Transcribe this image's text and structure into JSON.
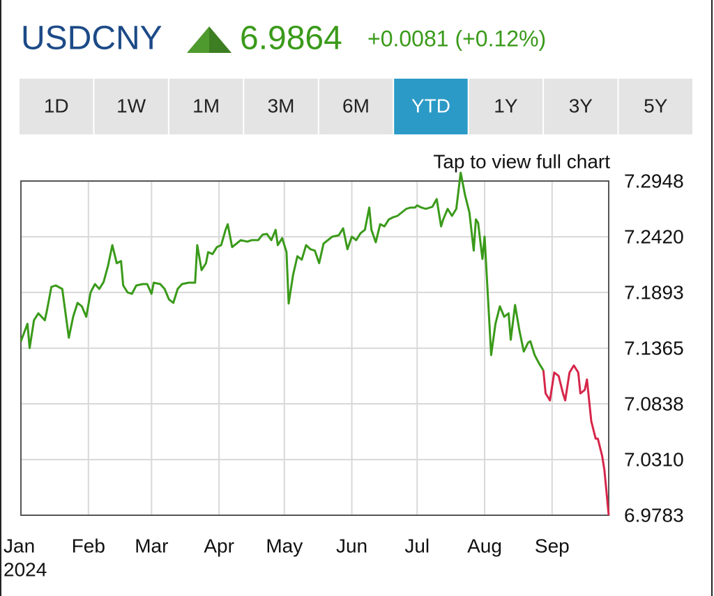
{
  "header": {
    "symbol": "USDCNY",
    "price": "6.9864",
    "change": "+0.0081 (+0.12%)"
  },
  "tabs": {
    "items": [
      "1D",
      "1W",
      "1M",
      "3M",
      "6M",
      "YTD",
      "1Y",
      "3Y",
      "5Y"
    ],
    "active": 5
  },
  "chart_data": {
    "type": "line",
    "note": "Tap to view full chart",
    "x": [
      0,
      3,
      4,
      6,
      8,
      11,
      12,
      14,
      16,
      19,
      22,
      24,
      26,
      28,
      30,
      32,
      34,
      36,
      38,
      40,
      42,
      44,
      46,
      47,
      49,
      51,
      53,
      56,
      58,
      60,
      61,
      64,
      66,
      68,
      70,
      72,
      74,
      77,
      80,
      81,
      83,
      85,
      86,
      88,
      90,
      92,
      94,
      95,
      97,
      99,
      101,
      104,
      106,
      109,
      111,
      113,
      115,
      117,
      118,
      120,
      122,
      123,
      125,
      127,
      129,
      131,
      133,
      135,
      137,
      139,
      141,
      143,
      146,
      148,
      150,
      152,
      154,
      156,
      158,
      160,
      161,
      163,
      165,
      167,
      169,
      171,
      173,
      175,
      177,
      179,
      181,
      182,
      184,
      186,
      189,
      191,
      193,
      194,
      196,
      198,
      200,
      202,
      204,
      206,
      208,
      209,
      210,
      212,
      213,
      216,
      218,
      220,
      222,
      224,
      225,
      227,
      229,
      231,
      233,
      234,
      236,
      238,
      240,
      241,
      243,
      245,
      247,
      249,
      250,
      252,
      254,
      256,
      257,
      259,
      260,
      262,
      264,
      265,
      267,
      268,
      270
    ],
    "series": [
      {
        "color": "#3a9a1a",
        "values": [
          7.1431,
          7.1596,
          7.1366,
          7.1629,
          7.1695,
          7.1629,
          7.1728,
          7.1946,
          7.1959,
          7.1926,
          7.1464,
          7.1662,
          7.1794,
          7.1761,
          7.1662,
          7.1893,
          7.1972,
          7.1926,
          7.1992,
          7.2144,
          7.2341,
          7.217,
          7.219,
          7.1959,
          7.1893,
          7.188,
          7.1959,
          7.1972,
          7.1972,
          7.188,
          7.1985,
          7.1972,
          7.1926,
          7.1827,
          7.1794,
          7.1926,
          7.1972,
          7.1985,
          7.1985,
          7.2341,
          7.2104,
          7.217,
          7.2275,
          7.2256,
          7.2322,
          7.2341,
          7.2486,
          7.2539,
          7.2322,
          7.2355,
          7.2388,
          7.2374,
          7.2388,
          7.2388,
          7.244,
          7.2447,
          7.2388,
          7.2486,
          7.2341,
          7.2407,
          7.2275,
          7.1788,
          7.2058,
          7.2236,
          7.2203,
          7.2341,
          7.2302,
          7.2289,
          7.217,
          7.2355,
          7.2388,
          7.2421,
          7.2434,
          7.25,
          7.2302,
          7.2421,
          7.2388,
          7.2454,
          7.2486,
          7.2697,
          7.2486,
          7.2368,
          7.2539,
          7.2519,
          7.2585,
          7.2605,
          7.2618,
          7.2651,
          7.2684,
          7.2697,
          7.2697,
          7.2717,
          7.2697,
          7.2684,
          7.2704,
          7.2777,
          7.2519,
          7.2585,
          7.2684,
          7.2618,
          7.2684,
          7.3027,
          7.2816,
          7.2651,
          7.2289,
          7.2585,
          7.2552,
          7.221,
          7.2421,
          7.13,
          7.1596,
          7.1761,
          7.1662,
          7.1695,
          7.1445,
          7.1774,
          7.153,
          7.1333,
          7.1418,
          7.1431,
          7.13,
          7.1221,
          7.1155,
          null,
          null,
          null,
          null,
          null,
          null,
          null,
          null,
          null,
          null,
          null,
          null,
          null,
          null,
          null,
          null,
          null,
          null
        ]
      },
      {
        "color": "#d6264a",
        "values": [
          null,
          null,
          null,
          null,
          null,
          null,
          null,
          null,
          null,
          null,
          null,
          null,
          null,
          null,
          null,
          null,
          null,
          null,
          null,
          null,
          null,
          null,
          null,
          null,
          null,
          null,
          null,
          null,
          null,
          null,
          null,
          null,
          null,
          null,
          null,
          null,
          null,
          null,
          null,
          null,
          null,
          null,
          null,
          null,
          null,
          null,
          null,
          null,
          null,
          null,
          null,
          null,
          null,
          null,
          null,
          null,
          null,
          null,
          null,
          null,
          null,
          null,
          null,
          null,
          null,
          null,
          null,
          null,
          null,
          null,
          null,
          null,
          null,
          null,
          null,
          null,
          null,
          null,
          null,
          null,
          null,
          null,
          null,
          null,
          null,
          null,
          null,
          null,
          null,
          null,
          null,
          null,
          null,
          null,
          null,
          null,
          null,
          null,
          null,
          null,
          null,
          null,
          null,
          null,
          null,
          null,
          null,
          null,
          null,
          null,
          null,
          null,
          null,
          null,
          null,
          null,
          null,
          null,
          null,
          null,
          null,
          null,
          7.1155,
          7.0937,
          7.0871,
          7.1135,
          7.1102,
          7.0937,
          7.0871,
          7.1135,
          7.1201,
          7.1135,
          7.0937,
          7.097,
          7.1069,
          7.0673,
          7.0508,
          7.0508,
          7.0344,
          7.0212,
          6.9783
        ]
      }
    ],
    "xlim": [
      0,
      270
    ],
    "xticks": [
      {
        "value": 0,
        "label": "Jan"
      },
      {
        "value": 31,
        "label": "Feb"
      },
      {
        "value": 60,
        "label": "Mar"
      },
      {
        "value": 91,
        "label": "Apr"
      },
      {
        "value": 121,
        "label": "May"
      },
      {
        "value": 152,
        "label": "Jun"
      },
      {
        "value": 182,
        "label": "Jul"
      },
      {
        "value": 213,
        "label": "Aug"
      },
      {
        "value": 244,
        "label": "Sep"
      }
    ],
    "x_year": "2024",
    "ylim": [
      6.9783,
      7.2948
    ],
    "yticks": [
      6.9783,
      {
        "value": 7.031,
        "label": "7.0310"
      },
      7.0838,
      7.1365,
      7.1893,
      {
        "value": 7.242,
        "label": "7.2420"
      },
      7.2948
    ],
    "grid": true
  }
}
